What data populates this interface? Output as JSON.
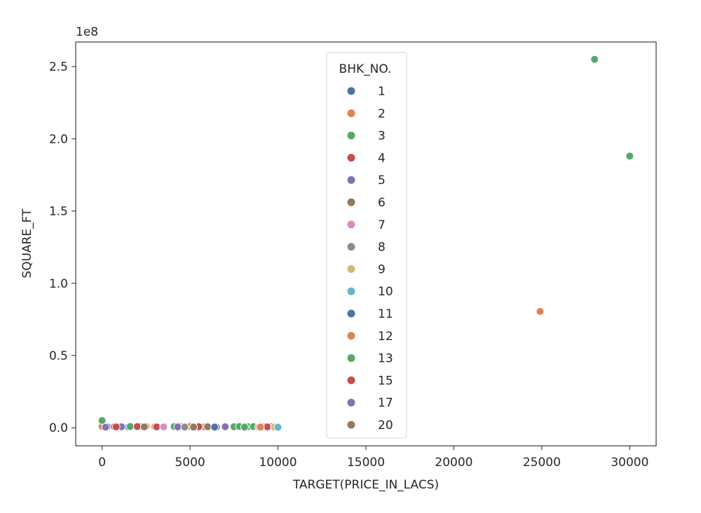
{
  "chart_data": {
    "type": "scatter",
    "xlabel": "TARGET(PRICE_IN_LACS)",
    "ylabel": "SQUARE_FT",
    "offset_label": "1e8",
    "xlim": [
      -1500,
      31500
    ],
    "ylim": [
      -12500000,
      267000000
    ],
    "x_ticks": [
      0,
      5000,
      10000,
      15000,
      20000,
      25000,
      30000
    ],
    "x_tick_labels": [
      "0",
      "5000",
      "10000",
      "15000",
      "20000",
      "25000",
      "30000"
    ],
    "y_ticks": [
      0,
      50000000,
      100000000,
      150000000,
      200000000,
      250000000
    ],
    "y_tick_labels": [
      "0.0",
      "0.5",
      "1.0",
      "1.5",
      "2.0",
      "2.5"
    ],
    "grid": false,
    "legend": {
      "title": "BHK_NO.",
      "placement": "upper-center"
    },
    "series": [
      {
        "name": "1",
        "color": "#4c72b0",
        "points": [
          [
            300,
            700000
          ],
          [
            1500,
            600000
          ],
          [
            6500,
            500000
          ]
        ]
      },
      {
        "name": "2",
        "color": "#dd8452",
        "points": [
          [
            0,
            900000
          ],
          [
            2200,
            800000
          ],
          [
            2500,
            900000
          ],
          [
            3000,
            700000
          ],
          [
            4500,
            800000
          ],
          [
            5000,
            900000
          ],
          [
            5800,
            600000
          ],
          [
            9200,
            700000
          ],
          [
            9600,
            800000
          ],
          [
            24900,
            80500000
          ]
        ]
      },
      {
        "name": "3",
        "color": "#55a868",
        "points": [
          [
            0,
            5000000
          ],
          [
            1600,
            900000
          ],
          [
            4100,
            800000
          ],
          [
            7500,
            700000
          ],
          [
            7800,
            900000
          ],
          [
            8300,
            700000
          ],
          [
            8600,
            800000
          ],
          [
            28000,
            255000000
          ],
          [
            30000,
            188000000
          ]
        ]
      },
      {
        "name": "4",
        "color": "#c44e52",
        "points": [
          [
            700,
            700000
          ],
          [
            2000,
            800000
          ],
          [
            3100,
            600000
          ],
          [
            5500,
            700000
          ],
          [
            9400,
            600000
          ]
        ]
      },
      {
        "name": "5",
        "color": "#8172b3",
        "points": [
          [
            1100,
            700000
          ],
          [
            4300,
            600000
          ],
          [
            7000,
            700000
          ]
        ]
      },
      {
        "name": "6",
        "color": "#937860",
        "points": [
          [
            2400,
            600000
          ],
          [
            6000,
            700000
          ]
        ]
      },
      {
        "name": "7",
        "color": "#da8bc3",
        "points": [
          [
            3500,
            600000
          ],
          [
            8900,
            500000
          ]
        ]
      },
      {
        "name": "8",
        "color": "#8c8c8c",
        "points": [
          [
            4700,
            500000
          ]
        ]
      },
      {
        "name": "9",
        "color": "#ccb974",
        "points": [
          [
            9800,
            500000
          ]
        ]
      },
      {
        "name": "10",
        "color": "#64b5cd",
        "points": [
          [
            10000,
            400000
          ]
        ]
      },
      {
        "name": "11",
        "color": "#4c72b0",
        "points": [
          [
            6400,
            500000
          ]
        ]
      },
      {
        "name": "12",
        "color": "#dd8452",
        "points": [
          [
            9000,
            500000
          ]
        ]
      },
      {
        "name": "13",
        "color": "#55a868",
        "points": [
          [
            8100,
            500000
          ]
        ]
      },
      {
        "name": "15",
        "color": "#c44e52",
        "points": [
          [
            800,
            600000
          ]
        ]
      },
      {
        "name": "17",
        "color": "#8172b3",
        "points": [
          [
            200,
            400000
          ]
        ]
      },
      {
        "name": "20",
        "color": "#937860",
        "points": [
          [
            5200,
            500000
          ]
        ]
      }
    ]
  }
}
